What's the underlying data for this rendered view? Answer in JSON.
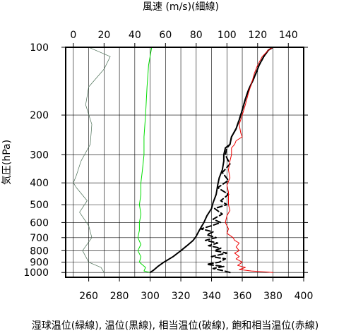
{
  "chart_data": {
    "type": "line",
    "title": "",
    "top_axis": {
      "label": "風速 (m/s)(細線)",
      "range": [
        -5,
        150
      ],
      "ticks": [
        0,
        20,
        40,
        60,
        80,
        100,
        120,
        140
      ]
    },
    "bottom_axis": {
      "label": "湿球温位(緑線), 温位(黒線), 相当温位(破線), 飽和相当温位(赤線)",
      "range": [
        245,
        400
      ],
      "ticks": [
        260,
        280,
        300,
        320,
        340,
        360,
        380,
        400
      ]
    },
    "y_axis": {
      "label": "気圧(hPa)",
      "scale": "log",
      "inverted": true,
      "range": [
        100,
        1050
      ],
      "ticks": [
        100,
        200,
        300,
        400,
        500,
        600,
        700,
        800,
        900,
        1000
      ]
    },
    "grid": true,
    "colors": {
      "wind": "#4a6e55",
      "wet_bulb": "#00dd00",
      "theta": "#000000",
      "theta_e": "#000000",
      "theta_es": "#ee0000"
    },
    "series": [
      {
        "key": "wind",
        "axis": "top",
        "style": "thin",
        "points": [
          [
            20,
            1000
          ],
          [
            18,
            950
          ],
          [
            10,
            900
          ],
          [
            6,
            800
          ],
          [
            12,
            700
          ],
          [
            10,
            620
          ],
          [
            4,
            540
          ],
          [
            9,
            480
          ],
          [
            2,
            420
          ],
          [
            0,
            400
          ],
          [
            2,
            370
          ],
          [
            5,
            320
          ],
          [
            11,
            270
          ],
          [
            12,
            220
          ],
          [
            8,
            180
          ],
          [
            10,
            150
          ],
          [
            20,
            125
          ],
          [
            24,
            110
          ],
          [
            10,
            100
          ]
        ]
      },
      {
        "key": "wet_bulb",
        "axis": "bottom",
        "style": "solid",
        "points": [
          [
            300,
            1000
          ],
          [
            296,
            985
          ],
          [
            297,
            950
          ],
          [
            293,
            900
          ],
          [
            294,
            850
          ],
          [
            292,
            800
          ],
          [
            294,
            750
          ],
          [
            292,
            700
          ],
          [
            293,
            650
          ],
          [
            293,
            600
          ],
          [
            294,
            550
          ],
          [
            293,
            500
          ],
          [
            294,
            450
          ],
          [
            294,
            400
          ],
          [
            295,
            350
          ],
          [
            296,
            300
          ],
          [
            296,
            250
          ],
          [
            297,
            200
          ],
          [
            298,
            150
          ],
          [
            299,
            120
          ],
          [
            301,
            100
          ]
        ]
      },
      {
        "key": "theta",
        "axis": "bottom",
        "style": "solid",
        "points": [
          [
            300,
            1000
          ],
          [
            302,
            980
          ],
          [
            305,
            940
          ],
          [
            309,
            900
          ],
          [
            315,
            850
          ],
          [
            320,
            800
          ],
          [
            324,
            760
          ],
          [
            328,
            720
          ],
          [
            330,
            690
          ],
          [
            332,
            650
          ],
          [
            335,
            600
          ],
          [
            337,
            560
          ],
          [
            340,
            520
          ],
          [
            341,
            490
          ],
          [
            343,
            450
          ],
          [
            344,
            410
          ],
          [
            345,
            380
          ],
          [
            347,
            350
          ],
          [
            348,
            320
          ],
          [
            348,
            300
          ],
          [
            349,
            280
          ],
          [
            352,
            270
          ],
          [
            353,
            250
          ],
          [
            356,
            230
          ],
          [
            358,
            210
          ],
          [
            360,
            190
          ],
          [
            362,
            170
          ],
          [
            364,
            155
          ],
          [
            367,
            140
          ],
          [
            369,
            130
          ],
          [
            371,
            120
          ],
          [
            374,
            110
          ],
          [
            377,
            103
          ],
          [
            380,
            100
          ]
        ]
      },
      {
        "key": "theta_e",
        "axis": "bottom",
        "style": "dashed",
        "points": [
          [
            352,
            1000
          ],
          [
            347,
            980
          ],
          [
            341,
            960
          ],
          [
            348,
            940
          ],
          [
            337,
            920
          ],
          [
            345,
            900
          ],
          [
            349,
            870
          ],
          [
            340,
            850
          ],
          [
            350,
            820
          ],
          [
            342,
            800
          ],
          [
            346,
            780
          ],
          [
            338,
            760
          ],
          [
            344,
            740
          ],
          [
            336,
            720
          ],
          [
            343,
            700
          ],
          [
            337,
            680
          ],
          [
            341,
            660
          ],
          [
            333,
            640
          ],
          [
            340,
            620
          ],
          [
            346,
            600
          ],
          [
            341,
            580
          ],
          [
            347,
            550
          ],
          [
            342,
            520
          ],
          [
            350,
            500
          ],
          [
            346,
            480
          ],
          [
            351,
            450
          ],
          [
            344,
            420
          ],
          [
            351,
            390
          ],
          [
            347,
            360
          ],
          [
            352,
            330
          ],
          [
            350,
            310
          ],
          [
            349,
            300
          ],
          [
            350,
            280
          ],
          [
            352,
            270
          ],
          [
            353,
            250
          ],
          [
            356,
            230
          ],
          [
            358,
            210
          ],
          [
            360,
            190
          ],
          [
            362,
            170
          ],
          [
            364,
            155
          ],
          [
            367,
            140
          ],
          [
            369,
            130
          ],
          [
            371,
            120
          ],
          [
            374,
            110
          ],
          [
            377,
            103
          ],
          [
            380,
            100
          ]
        ]
      },
      {
        "key": "theta_es",
        "axis": "bottom",
        "style": "solid",
        "points": [
          [
            380,
            1000
          ],
          [
            366,
            985
          ],
          [
            358,
            970
          ],
          [
            362,
            950
          ],
          [
            357,
            930
          ],
          [
            360,
            900
          ],
          [
            356,
            870
          ],
          [
            358,
            850
          ],
          [
            355,
            820
          ],
          [
            358,
            800
          ],
          [
            356,
            770
          ],
          [
            358,
            740
          ],
          [
            355,
            720
          ],
          [
            354,
            700
          ],
          [
            350,
            670
          ],
          [
            351,
            640
          ],
          [
            349,
            600
          ],
          [
            350,
            560
          ],
          [
            352,
            530
          ],
          [
            351,
            500
          ],
          [
            351,
            470
          ],
          [
            351,
            440
          ],
          [
            350,
            410
          ],
          [
            352,
            380
          ],
          [
            351,
            350
          ],
          [
            352,
            320
          ],
          [
            353,
            300
          ],
          [
            353,
            280
          ],
          [
            355,
            270
          ],
          [
            356,
            260
          ],
          [
            360,
            250
          ],
          [
            359,
            240
          ],
          [
            358,
            220
          ],
          [
            360,
            200
          ],
          [
            362,
            180
          ],
          [
            364,
            160
          ],
          [
            366,
            145
          ],
          [
            368,
            130
          ],
          [
            370,
            120
          ],
          [
            373,
            110
          ],
          [
            377,
            103
          ],
          [
            380,
            100
          ]
        ]
      }
    ]
  }
}
